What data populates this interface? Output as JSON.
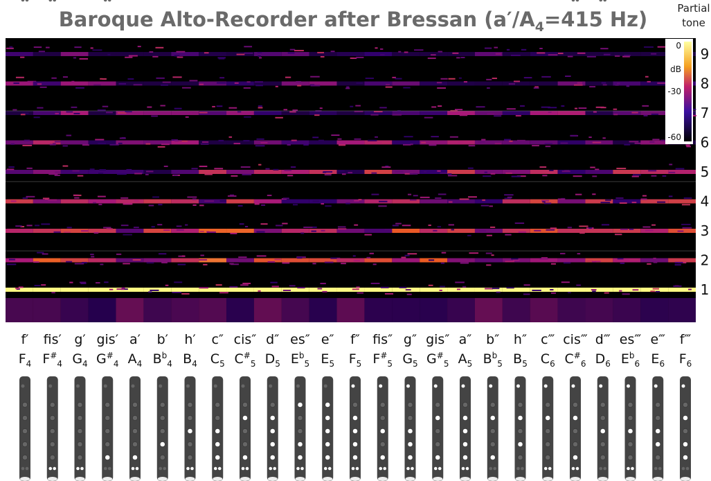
{
  "header": {
    "title": [
      "Baroque Alto-Recorder after Bressan (a′/A",
      "4",
      "=415 Hz)"
    ],
    "axis_label": [
      "Partial",
      "tone"
    ]
  },
  "partials": [
    "1",
    "2",
    "3",
    "4",
    "5",
    "6",
    "7",
    "8",
    "9"
  ],
  "colorbar": {
    "top": "0",
    "unit": "dB",
    "mid": "-30",
    "bottom": "-60"
  },
  "notes": [
    {
      "german": "f′",
      "letter": "F",
      "accidental": "",
      "octave": "4"
    },
    {
      "german": "fis′",
      "letter": "F",
      "accidental": "#",
      "octave": "4"
    },
    {
      "german": "g′",
      "letter": "G",
      "accidental": "",
      "octave": "4"
    },
    {
      "german": "gis′",
      "letter": "G",
      "accidental": "#",
      "octave": "4"
    },
    {
      "german": "a′",
      "letter": "A",
      "accidental": "",
      "octave": "4"
    },
    {
      "german": "b′",
      "letter": "B",
      "accidental": "b",
      "octave": "4"
    },
    {
      "german": "h′",
      "letter": "B",
      "accidental": "",
      "octave": "4"
    },
    {
      "german": "c″",
      "letter": "C",
      "accidental": "",
      "octave": "5"
    },
    {
      "german": "cis″",
      "letter": "C",
      "accidental": "#",
      "octave": "5"
    },
    {
      "german": "d″",
      "letter": "D",
      "accidental": "",
      "octave": "5"
    },
    {
      "german": "es″",
      "letter": "E",
      "accidental": "b",
      "octave": "5"
    },
    {
      "german": "e″",
      "letter": "E",
      "accidental": "",
      "octave": "5"
    },
    {
      "german": "f″",
      "letter": "F",
      "accidental": "",
      "octave": "5"
    },
    {
      "german": "fis″",
      "letter": "F",
      "accidental": "#",
      "octave": "5"
    },
    {
      "german": "g″",
      "letter": "G",
      "accidental": "",
      "octave": "5"
    },
    {
      "german": "gis″",
      "letter": "G",
      "accidental": "#",
      "octave": "5"
    },
    {
      "german": "a″",
      "letter": "A",
      "accidental": "",
      "octave": "5"
    },
    {
      "german": "b″",
      "letter": "B",
      "accidental": "b",
      "octave": "5"
    },
    {
      "german": "h″",
      "letter": "B",
      "accidental": "",
      "octave": "5"
    },
    {
      "german": "c‴",
      "letter": "C",
      "accidental": "",
      "octave": "6"
    },
    {
      "german": "cis‴",
      "letter": "C",
      "accidental": "#",
      "octave": "6"
    },
    {
      "german": "d‴",
      "letter": "D",
      "accidental": "",
      "octave": "6"
    },
    {
      "german": "es‴",
      "letter": "E",
      "accidental": "b",
      "octave": "6"
    },
    {
      "german": "e‴",
      "letter": "E",
      "accidental": "",
      "octave": "6"
    },
    {
      "german": "f‴",
      "letter": "F",
      "accidental": "",
      "octave": "6"
    }
  ]
}
